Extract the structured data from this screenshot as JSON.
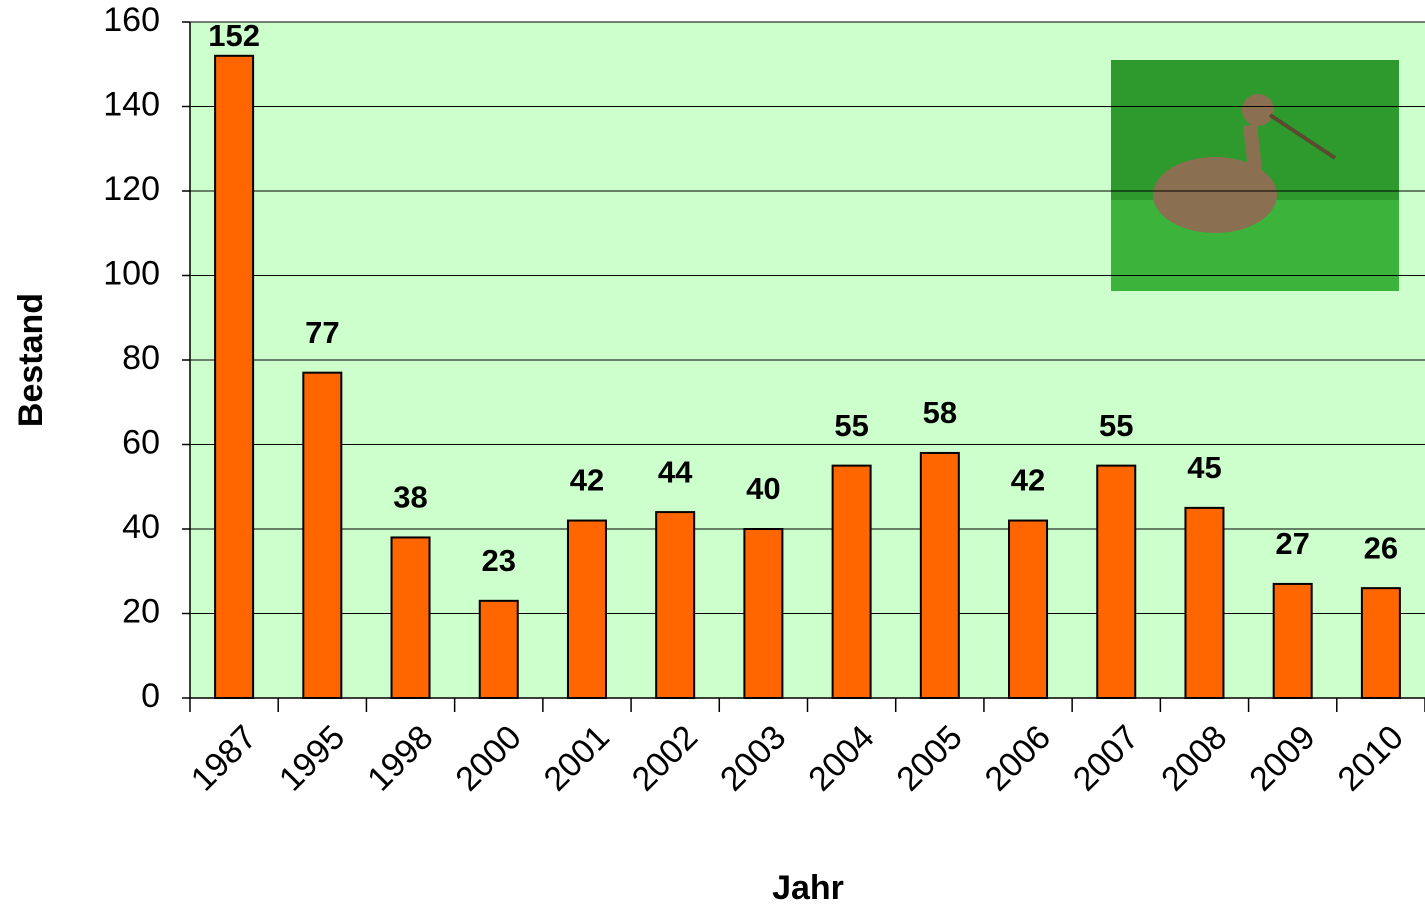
{
  "chart_data": {
    "type": "bar",
    "x_label": "Jahr",
    "y_label": "Bestand",
    "categories": [
      "1987",
      "1995",
      "1998",
      "2000",
      "2001",
      "2002",
      "2003",
      "2004",
      "2005",
      "2006",
      "2007",
      "2008",
      "2009",
      "2010"
    ],
    "values": [
      152,
      77,
      38,
      23,
      42,
      44,
      40,
      55,
      58,
      42,
      55,
      45,
      27,
      26
    ],
    "color": "#ff6600",
    "ylim": [
      0,
      160
    ],
    "yticks": [
      0,
      20,
      40,
      60,
      80,
      100,
      120,
      140,
      160
    ],
    "grid": true
  }
}
